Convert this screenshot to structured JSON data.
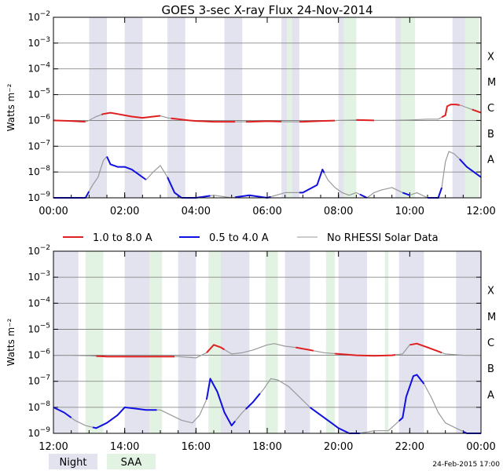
{
  "title": "GOES 3-sec X-ray Flux   24-Nov-2014",
  "footer_timestamp": "24-Feb-2015 17:00",
  "colors": {
    "long_channel": "#e02020",
    "short_channel": "#1010e0",
    "no_rhessi": "#999999",
    "night": "#e3e3f0",
    "saa": "#e3f3e3"
  },
  "legend": {
    "long_label": "1.0 to 8.0 A",
    "short_label": "0.5 to 4.0 A",
    "no_rhessi_label": "No RHESSI Solar Data",
    "night_label": "Night",
    "saa_label": "SAA"
  },
  "chart_data": [
    {
      "type": "line",
      "title": "GOES 3-sec X-ray Flux   24-Nov-2014",
      "ylabel": "Watts m⁻²",
      "xlabel": "",
      "xlim": [
        0,
        12
      ],
      "ylim_exp": [
        -9,
        -2
      ],
      "x_tick_labels": [
        "00:00",
        "02:00",
        "04:00",
        "06:00",
        "08:00",
        "10:00",
        "12:00"
      ],
      "y_tick_exponents": [
        -9,
        -8,
        -7,
        -6,
        -5,
        -4,
        -3,
        -2
      ],
      "class_labels": [
        "A",
        "B",
        "C",
        "M",
        "X"
      ],
      "night_bands": [
        [
          1.0,
          1.5
        ],
        [
          2.0,
          2.5
        ],
        [
          3.2,
          3.7
        ],
        [
          4.8,
          5.3
        ],
        [
          6.4,
          6.9
        ],
        [
          8.0,
          8.5
        ],
        [
          9.6,
          10.1
        ],
        [
          11.2,
          11.6
        ]
      ],
      "saa_bands": [
        [
          6.55,
          6.7
        ],
        [
          8.15,
          8.5
        ],
        [
          9.75,
          10.15
        ],
        [
          11.55,
          11.95
        ]
      ],
      "series": [
        {
          "name": "1.0 to 8.0 A",
          "unit": "log10 W/m^2",
          "x": [
            0.0,
            0.5,
            0.9,
            1.0,
            1.2,
            1.4,
            1.6,
            1.8,
            2.0,
            2.2,
            2.5,
            2.8,
            3.0,
            3.2,
            3.5,
            3.8,
            4.0,
            4.5,
            5.0,
            5.5,
            6.0,
            6.5,
            7.0,
            7.5,
            8.0,
            8.5,
            9.0,
            9.5,
            10.0,
            10.5,
            10.8,
            11.0,
            11.05,
            11.15,
            11.3,
            11.45,
            11.6,
            11.8,
            12.0
          ],
          "y": [
            -6.0,
            -6.02,
            -6.05,
            -6.0,
            -5.85,
            -5.75,
            -5.7,
            -5.75,
            -5.8,
            -5.85,
            -5.9,
            -5.85,
            -5.82,
            -5.9,
            -5.95,
            -6.0,
            -6.02,
            -6.05,
            -6.05,
            -6.05,
            -6.03,
            -6.05,
            -6.05,
            -6.02,
            -6.0,
            -5.98,
            -6.0,
            -6.0,
            -5.98,
            -5.95,
            -5.95,
            -5.8,
            -5.45,
            -5.38,
            -5.38,
            -5.42,
            -5.5,
            -5.6,
            -5.7
          ],
          "segments": [
            {
              "style": "red",
              "x0": 0.0,
              "x1": 0.9
            },
            {
              "style": "gray",
              "x0": 0.9,
              "x1": 1.35
            },
            {
              "style": "red",
              "x0": 1.35,
              "x1": 3.0
            },
            {
              "style": "gray",
              "x0": 3.0,
              "x1": 3.3
            },
            {
              "style": "red",
              "x0": 3.3,
              "x1": 5.1
            },
            {
              "style": "gray",
              "x0": 5.1,
              "x1": 5.4
            },
            {
              "style": "red",
              "x0": 5.4,
              "x1": 6.4
            },
            {
              "style": "gray",
              "x0": 6.4,
              "x1": 6.9
            },
            {
              "style": "red",
              "x0": 6.9,
              "x1": 7.9
            },
            {
              "style": "gray",
              "x0": 7.9,
              "x1": 8.5
            },
            {
              "style": "red",
              "x0": 8.5,
              "x1": 9.0
            },
            {
              "style": "gray",
              "x0": 9.0,
              "x1": 10.9
            },
            {
              "style": "red",
              "x0": 10.9,
              "x1": 11.4
            },
            {
              "style": "gray",
              "x0": 11.4,
              "x1": 11.75
            },
            {
              "style": "red",
              "x0": 11.75,
              "x1": 12.0
            }
          ]
        },
        {
          "name": "0.5 to 4.0 A",
          "unit": "log10 W/m^2",
          "x": [
            0.0,
            0.3,
            0.6,
            0.9,
            1.1,
            1.25,
            1.4,
            1.5,
            1.6,
            1.8,
            2.0,
            2.2,
            2.4,
            2.6,
            2.8,
            3.0,
            3.2,
            3.4,
            3.6,
            3.8,
            4.0,
            4.5,
            5.0,
            5.5,
            6.0,
            6.5,
            7.0,
            7.4,
            7.55,
            7.7,
            7.9,
            8.1,
            8.3,
            8.5,
            8.8,
            9.0,
            9.2,
            9.5,
            9.8,
            10.0,
            10.2,
            10.5,
            10.8,
            10.9,
            11.0,
            11.1,
            11.25,
            11.4,
            11.6,
            11.8,
            12.0
          ],
          "y": [
            -9.0,
            -9.0,
            -9.0,
            -9.0,
            -8.5,
            -8.2,
            -7.55,
            -7.4,
            -7.7,
            -7.8,
            -7.8,
            -7.9,
            -8.1,
            -8.3,
            -8.0,
            -7.75,
            -8.2,
            -8.8,
            -9.0,
            -9.0,
            -9.0,
            -8.9,
            -9.0,
            -8.9,
            -9.0,
            -8.8,
            -8.8,
            -8.5,
            -7.9,
            -8.3,
            -8.6,
            -8.8,
            -8.9,
            -8.8,
            -9.0,
            -8.8,
            -8.7,
            -8.6,
            -8.8,
            -8.9,
            -8.8,
            -9.0,
            -9.0,
            -8.6,
            -7.6,
            -7.2,
            -7.3,
            -7.5,
            -7.8,
            -8.0,
            -8.2
          ],
          "segments": [
            {
              "style": "blue",
              "x0": 0.0,
              "x1": 1.0
            },
            {
              "style": "gray",
              "x0": 1.0,
              "x1": 1.5
            },
            {
              "style": "blue",
              "x0": 1.5,
              "x1": 2.6
            },
            {
              "style": "gray",
              "x0": 2.6,
              "x1": 3.2
            },
            {
              "style": "blue",
              "x0": 3.2,
              "x1": 4.4
            },
            {
              "style": "gray",
              "x0": 4.4,
              "x1": 5.1
            },
            {
              "style": "blue",
              "x0": 5.1,
              "x1": 6.1
            },
            {
              "style": "gray",
              "x0": 6.1,
              "x1": 6.9
            },
            {
              "style": "blue",
              "x0": 6.9,
              "x1": 7.6
            },
            {
              "style": "gray",
              "x0": 7.6,
              "x1": 8.6
            },
            {
              "style": "blue",
              "x0": 8.6,
              "x1": 8.8
            },
            {
              "style": "gray",
              "x0": 8.8,
              "x1": 9.8
            },
            {
              "style": "blue",
              "x0": 9.8,
              "x1": 10.0
            },
            {
              "style": "gray",
              "x0": 10.0,
              "x1": 10.5
            },
            {
              "style": "blue",
              "x0": 10.5,
              "x1": 10.9
            },
            {
              "style": "gray",
              "x0": 10.9,
              "x1": 11.4
            },
            {
              "style": "blue",
              "x0": 11.4,
              "x1": 12.0
            }
          ]
        }
      ]
    },
    {
      "type": "line",
      "title": "",
      "ylabel": "Watts m⁻²",
      "xlabel": "",
      "xlim": [
        12,
        24
      ],
      "ylim_exp": [
        -9,
        -2
      ],
      "x_tick_labels": [
        "12:00",
        "14:00",
        "16:00",
        "18:00",
        "20:00",
        "22:00",
        "00:00"
      ],
      "y_tick_exponents": [
        -9,
        -8,
        -7,
        -6,
        -5,
        -4,
        -3,
        -2
      ],
      "class_labels": [
        "A",
        "B",
        "C",
        "M",
        "X"
      ],
      "night_bands": [
        [
          12.0,
          12.7
        ],
        [
          14.0,
          14.7
        ],
        [
          15.5,
          16.0
        ],
        [
          16.5,
          17.5
        ],
        [
          18.5,
          19.2
        ],
        [
          20.0,
          20.8
        ],
        [
          21.7,
          22.4
        ],
        [
          23.3,
          24.0
        ]
      ],
      "saa_bands": [
        [
          12.9,
          13.4
        ],
        [
          14.7,
          15.05
        ],
        [
          16.35,
          16.7
        ],
        [
          17.95,
          18.3
        ],
        [
          19.65,
          19.9
        ],
        [
          21.3,
          21.4
        ]
      ],
      "series": [
        {
          "name": "1.0 to 8.0 A",
          "unit": "log10 W/m^2",
          "x": [
            12.0,
            12.5,
            13.0,
            13.5,
            14.0,
            14.5,
            15.0,
            15.5,
            16.0,
            16.3,
            16.5,
            16.7,
            17.0,
            17.3,
            17.6,
            18.0,
            18.2,
            18.5,
            18.8,
            19.2,
            19.6,
            20.0,
            20.5,
            21.0,
            21.5,
            21.8,
            22.0,
            22.2,
            22.5,
            22.8,
            23.0,
            23.5,
            24.0
          ],
          "y": [
            -6.0,
            -6.0,
            -6.02,
            -6.05,
            -6.05,
            -6.05,
            -6.05,
            -6.05,
            -6.1,
            -5.9,
            -5.6,
            -5.7,
            -5.95,
            -5.9,
            -5.8,
            -5.6,
            -5.55,
            -5.65,
            -5.7,
            -5.8,
            -5.9,
            -5.95,
            -6.0,
            -6.02,
            -6.0,
            -5.95,
            -5.6,
            -5.55,
            -5.7,
            -5.85,
            -5.95,
            -6.0,
            -6.0
          ],
          "segments": [
            {
              "style": "gray",
              "x0": 12.0,
              "x1": 13.2
            },
            {
              "style": "red",
              "x0": 13.2,
              "x1": 15.4
            },
            {
              "style": "gray",
              "x0": 15.4,
              "x1": 16.3
            },
            {
              "style": "red",
              "x0": 16.3,
              "x1": 16.8
            },
            {
              "style": "gray",
              "x0": 16.8,
              "x1": 18.8
            },
            {
              "style": "red",
              "x0": 18.8,
              "x1": 19.3
            },
            {
              "style": "gray",
              "x0": 19.3,
              "x1": 19.9
            },
            {
              "style": "red",
              "x0": 19.9,
              "x1": 21.6
            },
            {
              "style": "gray",
              "x0": 21.6,
              "x1": 22.0
            },
            {
              "style": "red",
              "x0": 22.0,
              "x1": 22.9
            },
            {
              "style": "gray",
              "x0": 22.9,
              "x1": 24.0
            }
          ]
        },
        {
          "name": "0.5 to 4.0 A",
          "unit": "log10 W/m^2",
          "x": [
            12.0,
            12.3,
            12.6,
            12.9,
            13.2,
            13.5,
            13.8,
            14.0,
            14.3,
            14.6,
            15.0,
            15.3,
            15.6,
            15.9,
            16.1,
            16.3,
            16.4,
            16.6,
            16.8,
            17.0,
            17.3,
            17.6,
            17.9,
            18.1,
            18.3,
            18.6,
            18.9,
            19.2,
            19.5,
            19.8,
            20.0,
            20.3,
            20.6,
            21.0,
            21.4,
            21.8,
            21.9,
            22.1,
            22.2,
            22.4,
            22.6,
            22.8,
            23.0,
            23.3,
            23.6,
            24.0
          ],
          "y": [
            -8.0,
            -8.2,
            -8.5,
            -8.7,
            -8.8,
            -8.6,
            -8.3,
            -8.0,
            -8.05,
            -8.1,
            -8.1,
            -8.3,
            -8.5,
            -8.6,
            -8.3,
            -7.7,
            -6.9,
            -7.4,
            -8.2,
            -8.7,
            -8.2,
            -7.8,
            -7.3,
            -6.9,
            -6.95,
            -7.2,
            -7.6,
            -8.0,
            -8.3,
            -8.6,
            -8.8,
            -9.0,
            -9.0,
            -8.9,
            -8.9,
            -8.4,
            -7.6,
            -6.8,
            -6.75,
            -7.1,
            -7.6,
            -8.2,
            -8.6,
            -8.8,
            -9.0,
            -9.0
          ],
          "segments": [
            {
              "style": "blue",
              "x0": 12.0,
              "x1": 12.5
            },
            {
              "style": "gray",
              "x0": 12.5,
              "x1": 13.1
            },
            {
              "style": "blue",
              "x0": 13.1,
              "x1": 14.9
            },
            {
              "style": "gray",
              "x0": 14.9,
              "x1": 16.3
            },
            {
              "style": "blue",
              "x0": 16.3,
              "x1": 17.1
            },
            {
              "style": "gray",
              "x0": 17.1,
              "x1": 17.4
            },
            {
              "style": "blue",
              "x0": 17.4,
              "x1": 17.8
            },
            {
              "style": "gray",
              "x0": 17.8,
              "x1": 19.2
            },
            {
              "style": "blue",
              "x0": 19.2,
              "x1": 20.6
            },
            {
              "style": "gray",
              "x0": 20.6,
              "x1": 21.7
            },
            {
              "style": "blue",
              "x0": 21.7,
              "x1": 22.4
            },
            {
              "style": "gray",
              "x0": 22.4,
              "x1": 23.5
            },
            {
              "style": "blue",
              "x0": 23.5,
              "x1": 24.0
            }
          ]
        }
      ]
    }
  ]
}
